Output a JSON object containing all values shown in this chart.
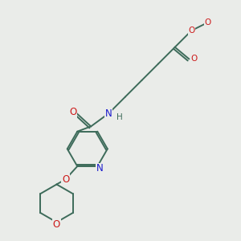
{
  "bg_color": "#eaece9",
  "bond_color": "#3d6b5a",
  "nitrogen_color": "#1a1acc",
  "oxygen_color": "#cc1a1a",
  "font_size": 7.5,
  "line_width": 1.4,
  "figsize": [
    3.0,
    3.0
  ],
  "dpi": 100,
  "xlim": [
    0,
    10
  ],
  "ylim": [
    0,
    10
  ]
}
